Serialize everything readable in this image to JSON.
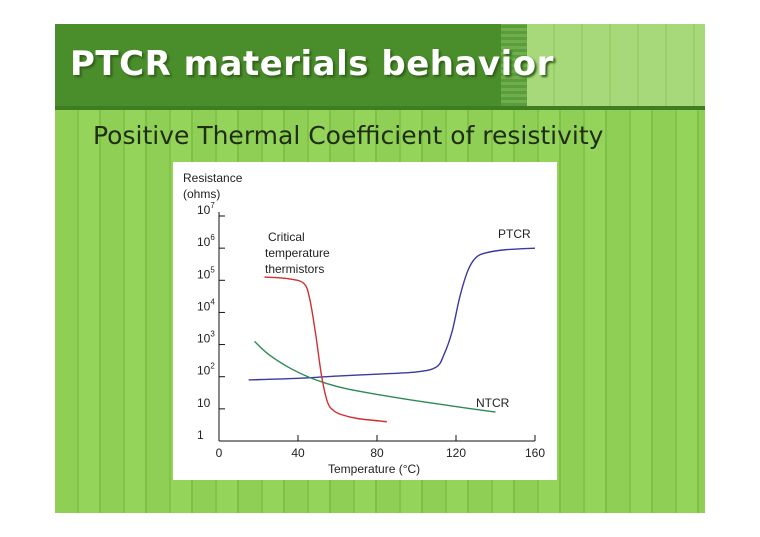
{
  "slide": {
    "title": "PTCR materials behavior",
    "subtitle": "Positive Thermal Coefficient of resistivity"
  },
  "chart_data": {
    "type": "line",
    "title": "",
    "ylabel_line1": "Resistance",
    "ylabel_line2": "(ohms)",
    "xlabel": "Temperature (°C)",
    "xlim": [
      0,
      160
    ],
    "ylim_log10": [
      0,
      7
    ],
    "y_scale": "log",
    "x_ticks": [
      "0",
      "40",
      "80",
      "120",
      "160"
    ],
    "x_tick_values": [
      0,
      40,
      80,
      120,
      160
    ],
    "y_ticks": [
      {
        "base": "10",
        "exp": "7",
        "value": 7
      },
      {
        "base": "10",
        "exp": "6",
        "value": 6
      },
      {
        "base": "10",
        "exp": "5",
        "value": 5
      },
      {
        "base": "10",
        "exp": "4",
        "value": 4
      },
      {
        "base": "10",
        "exp": "3",
        "value": 3
      },
      {
        "base": "10",
        "exp": "2",
        "value": 2
      },
      {
        "base": "10",
        "exp": "",
        "value": 1
      },
      {
        "base": "1",
        "exp": "",
        "value": 0
      }
    ],
    "series": [
      {
        "name": "PTCR",
        "color": "#3a3aa0",
        "x": [
          15,
          40,
          60,
          80,
          100,
          110,
          114,
          118,
          122,
          126,
          130,
          135,
          145,
          160
        ],
        "y": [
          1.9,
          1.95,
          2.02,
          2.08,
          2.15,
          2.3,
          2.7,
          3.4,
          4.5,
          5.3,
          5.7,
          5.85,
          5.95,
          6.0
        ]
      },
      {
        "name": "NTCR",
        "color": "#2e8a55",
        "x": [
          18,
          25,
          35,
          45,
          55,
          65,
          80,
          100,
          120,
          140
        ],
        "y": [
          3.1,
          2.7,
          2.3,
          2.0,
          1.78,
          1.62,
          1.45,
          1.25,
          1.07,
          0.9
        ]
      },
      {
        "name": "Critical temperature thermistors",
        "color": "#d03030",
        "x": [
          23,
          35,
          43,
          46,
          49,
          52,
          55,
          58,
          62,
          70,
          85
        ],
        "y": [
          5.1,
          5.05,
          4.9,
          4.4,
          3.3,
          2.0,
          1.2,
          0.95,
          0.82,
          0.7,
          0.6
        ]
      }
    ],
    "annotations": {
      "ptcr": "PTCR",
      "ntcr": "NTCR",
      "critical": [
        "Critical",
        "temperature",
        "thermistors"
      ]
    }
  }
}
